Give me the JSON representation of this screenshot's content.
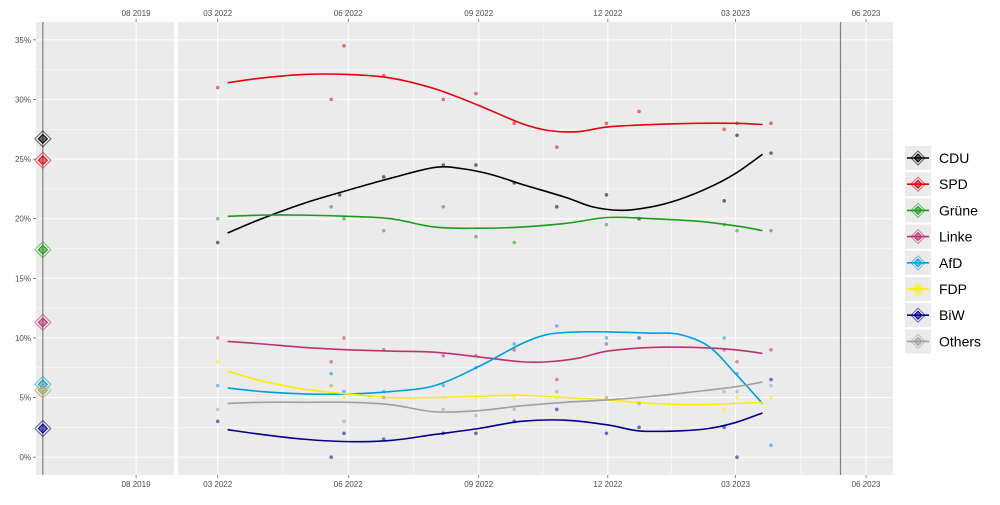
{
  "chart_data": {
    "type": "line",
    "y_ticks": [
      "0%",
      "5%",
      "10%",
      "15%",
      "20%",
      "25%",
      "30%",
      "35%"
    ],
    "y_tick_values": [
      0,
      5,
      10,
      15,
      20,
      25,
      30,
      35
    ],
    "ylim": [
      -1.5,
      36.5
    ],
    "grid": true,
    "legend_position": "right",
    "previous_election": {
      "date": "2018-11-01",
      "x_ticks": [
        {
          "date": "2019-08-01",
          "label": "08 2019"
        }
      ],
      "results": [
        {
          "party": "CDU",
          "value": 26.7
        },
        {
          "party": "SPD",
          "value": 24.9
        },
        {
          "party": "Grüne",
          "value": 17.4
        },
        {
          "party": "Linke",
          "value": 11.3
        },
        {
          "party": "AfD",
          "value": 6.1
        },
        {
          "party": "FDP",
          "value": 5.6
        },
        {
          "party": "BiW",
          "value": 2.4
        },
        {
          "party": "Others",
          "value": 5.6
        }
      ]
    },
    "x_ticks": [
      {
        "date": "2022-03-01",
        "label": "03 2022"
      },
      {
        "date": "2022-06-01",
        "label": "06 2022"
      },
      {
        "date": "2022-09-01",
        "label": "09 2022"
      },
      {
        "date": "2022-12-01",
        "label": "12 2022"
      },
      {
        "date": "2023-03-01",
        "label": "03 2023"
      },
      {
        "date": "2023-06-01",
        "label": "06 2023"
      }
    ],
    "x_range": [
      "2022-02-01",
      "2023-06-20"
    ],
    "election_date": "2023-05-14",
    "series": [
      {
        "name": "CDU",
        "color": "#000000",
        "trend": [
          [
            "2022-03-08",
            18.8
          ],
          [
            "2022-04-01",
            20.0
          ],
          [
            "2022-05-01",
            21.3
          ],
          [
            "2022-06-01",
            22.4
          ],
          [
            "2022-07-01",
            23.4
          ],
          [
            "2022-08-01",
            24.3
          ],
          [
            "2022-08-20",
            24.2
          ],
          [
            "2022-09-10",
            23.7
          ],
          [
            "2022-10-01",
            22.9
          ],
          [
            "2022-11-01",
            21.8
          ],
          [
            "2022-11-20",
            21.0
          ],
          [
            "2022-12-10",
            20.7
          ],
          [
            "2023-01-01",
            21.0
          ],
          [
            "2023-01-20",
            21.6
          ],
          [
            "2023-02-10",
            22.6
          ],
          [
            "2023-03-01",
            23.8
          ],
          [
            "2023-03-20",
            25.4
          ]
        ],
        "polls": [
          [
            "2022-03-01",
            18.0
          ],
          [
            "2022-05-26",
            22.0
          ],
          [
            "2022-06-26",
            23.5
          ],
          [
            "2022-08-07",
            24.5
          ],
          [
            "2022-08-30",
            24.5
          ],
          [
            "2022-09-26",
            23.0
          ],
          [
            "2022-10-26",
            21.0
          ],
          [
            "2022-11-30",
            22.0
          ],
          [
            "2022-12-23",
            20.0
          ],
          [
            "2023-02-21",
            21.5
          ],
          [
            "2023-03-02",
            27.0
          ],
          [
            "2023-03-26",
            25.5
          ]
        ]
      },
      {
        "name": "SPD",
        "color": "#E3000F",
        "trend": [
          [
            "2022-03-08",
            31.4
          ],
          [
            "2022-04-01",
            31.8
          ],
          [
            "2022-05-01",
            32.1
          ],
          [
            "2022-06-01",
            32.1
          ],
          [
            "2022-07-01",
            31.8
          ],
          [
            "2022-08-01",
            30.9
          ],
          [
            "2022-09-01",
            29.5
          ],
          [
            "2022-10-01",
            28.0
          ],
          [
            "2022-10-20",
            27.4
          ],
          [
            "2022-11-10",
            27.3
          ],
          [
            "2022-12-01",
            27.7
          ],
          [
            "2023-01-01",
            27.9
          ],
          [
            "2023-02-01",
            28.0
          ],
          [
            "2023-03-01",
            28.0
          ],
          [
            "2023-03-20",
            27.9
          ]
        ],
        "polls": [
          [
            "2022-03-01",
            31.0
          ],
          [
            "2022-05-20",
            30.0
          ],
          [
            "2022-05-29",
            34.5
          ],
          [
            "2022-06-26",
            32.0
          ],
          [
            "2022-08-07",
            30.0
          ],
          [
            "2022-08-30",
            30.5
          ],
          [
            "2022-09-26",
            28.0
          ],
          [
            "2022-10-26",
            26.0
          ],
          [
            "2022-11-30",
            28.0
          ],
          [
            "2022-12-23",
            29.0
          ],
          [
            "2023-02-21",
            27.5
          ],
          [
            "2023-03-02",
            28.0
          ],
          [
            "2023-03-26",
            28.0
          ]
        ]
      },
      {
        "name": "Grüne",
        "color": "#1A9E1A",
        "trend": [
          [
            "2022-03-08",
            20.2
          ],
          [
            "2022-04-01",
            20.3
          ],
          [
            "2022-05-01",
            20.3
          ],
          [
            "2022-06-01",
            20.2
          ],
          [
            "2022-07-01",
            20.0
          ],
          [
            "2022-08-01",
            19.3
          ],
          [
            "2022-09-01",
            19.2
          ],
          [
            "2022-10-01",
            19.3
          ],
          [
            "2022-11-01",
            19.6
          ],
          [
            "2022-12-01",
            20.1
          ],
          [
            "2023-01-01",
            20.0
          ],
          [
            "2023-02-01",
            19.8
          ],
          [
            "2023-03-01",
            19.4
          ],
          [
            "2023-03-20",
            19.0
          ]
        ],
        "polls": [
          [
            "2022-03-01",
            20.0
          ],
          [
            "2022-05-20",
            21.0
          ],
          [
            "2022-05-29",
            20.0
          ],
          [
            "2022-06-26",
            19.0
          ],
          [
            "2022-08-07",
            21.0
          ],
          [
            "2022-08-30",
            18.5
          ],
          [
            "2022-09-26",
            18.0
          ],
          [
            "2022-10-26",
            21.0
          ],
          [
            "2022-11-30",
            19.5
          ],
          [
            "2022-12-23",
            20.0
          ],
          [
            "2023-02-21",
            19.5
          ],
          [
            "2023-03-02",
            19.0
          ],
          [
            "2023-03-26",
            19.0
          ]
        ]
      },
      {
        "name": "Linke",
        "color": "#BE3075",
        "trend": [
          [
            "2022-03-08",
            9.7
          ],
          [
            "2022-04-01",
            9.5
          ],
          [
            "2022-05-01",
            9.2
          ],
          [
            "2022-06-01",
            9.0
          ],
          [
            "2022-07-01",
            8.9
          ],
          [
            "2022-08-01",
            8.8
          ],
          [
            "2022-09-01",
            8.4
          ],
          [
            "2022-10-01",
            8.0
          ],
          [
            "2022-10-20",
            8.0
          ],
          [
            "2022-11-10",
            8.3
          ],
          [
            "2022-12-01",
            8.9
          ],
          [
            "2023-01-01",
            9.2
          ],
          [
            "2023-02-01",
            9.2
          ],
          [
            "2023-03-01",
            9.0
          ],
          [
            "2023-03-20",
            8.7
          ]
        ],
        "polls": [
          [
            "2022-03-01",
            10.0
          ],
          [
            "2022-05-20",
            8.0
          ],
          [
            "2022-05-29",
            10.0
          ],
          [
            "2022-06-26",
            9.0
          ],
          [
            "2022-08-07",
            8.5
          ],
          [
            "2022-08-30",
            8.5
          ],
          [
            "2022-09-26",
            9.0
          ],
          [
            "2022-10-26",
            6.5
          ],
          [
            "2022-11-30",
            9.5
          ],
          [
            "2022-12-23",
            10.0
          ],
          [
            "2023-02-21",
            9.0
          ],
          [
            "2023-03-02",
            8.0
          ],
          [
            "2023-03-26",
            9.0
          ]
        ]
      },
      {
        "name": "AfD",
        "color": "#009EE0",
        "trend": [
          [
            "2022-03-08",
            5.8
          ],
          [
            "2022-04-01",
            5.5
          ],
          [
            "2022-05-01",
            5.3
          ],
          [
            "2022-06-01",
            5.3
          ],
          [
            "2022-07-01",
            5.5
          ],
          [
            "2022-08-01",
            6.0
          ],
          [
            "2022-09-01",
            7.6
          ],
          [
            "2022-10-01",
            9.5
          ],
          [
            "2022-10-20",
            10.3
          ],
          [
            "2022-11-10",
            10.5
          ],
          [
            "2022-12-01",
            10.5
          ],
          [
            "2023-01-01",
            10.4
          ],
          [
            "2023-01-20",
            10.3
          ],
          [
            "2023-02-10",
            9.3
          ],
          [
            "2023-03-01",
            7.0
          ],
          [
            "2023-03-20",
            4.5
          ]
        ],
        "polls": [
          [
            "2022-03-01",
            6.0
          ],
          [
            "2022-05-20",
            7.0
          ],
          [
            "2022-05-29",
            5.5
          ],
          [
            "2022-06-26",
            5.5
          ],
          [
            "2022-08-07",
            6.0
          ],
          [
            "2022-08-30",
            7.5
          ],
          [
            "2022-09-26",
            9.5
          ],
          [
            "2022-10-26",
            11.0
          ],
          [
            "2022-11-30",
            10.0
          ],
          [
            "2022-12-23",
            10.0
          ],
          [
            "2023-02-21",
            10.0
          ],
          [
            "2023-03-02",
            7.0
          ],
          [
            "2023-03-26",
            1.0
          ]
        ]
      },
      {
        "name": "FDP",
        "color": "#FFED00",
        "trend": [
          [
            "2022-03-08",
            7.2
          ],
          [
            "2022-04-01",
            6.4
          ],
          [
            "2022-05-01",
            5.7
          ],
          [
            "2022-06-01",
            5.3
          ],
          [
            "2022-07-01",
            5.0
          ],
          [
            "2022-08-01",
            5.0
          ],
          [
            "2022-09-01",
            5.1
          ],
          [
            "2022-10-01",
            5.2
          ],
          [
            "2022-11-01",
            5.0
          ],
          [
            "2022-12-01",
            4.8
          ],
          [
            "2023-01-01",
            4.5
          ],
          [
            "2023-02-01",
            4.4
          ],
          [
            "2023-03-01",
            4.5
          ],
          [
            "2023-03-20",
            4.6
          ]
        ],
        "polls": [
          [
            "2022-03-01",
            8.0
          ],
          [
            "2022-05-20",
            6.0
          ],
          [
            "2022-05-29",
            5.0
          ],
          [
            "2022-06-26",
            5.0
          ],
          [
            "2022-08-07",
            5.0
          ],
          [
            "2022-08-30",
            5.0
          ],
          [
            "2022-09-26",
            5.0
          ],
          [
            "2022-10-26",
            5.0
          ],
          [
            "2022-11-30",
            5.0
          ],
          [
            "2022-12-23",
            4.5
          ],
          [
            "2023-02-21",
            4.0
          ],
          [
            "2023-03-02",
            5.0
          ],
          [
            "2023-03-26",
            5.0
          ]
        ]
      },
      {
        "name": "BiW",
        "color": "#00008B",
        "trend": [
          [
            "2022-03-08",
            2.3
          ],
          [
            "2022-04-01",
            1.9
          ],
          [
            "2022-05-01",
            1.5
          ],
          [
            "2022-06-01",
            1.3
          ],
          [
            "2022-07-01",
            1.4
          ],
          [
            "2022-08-01",
            1.9
          ],
          [
            "2022-09-01",
            2.4
          ],
          [
            "2022-10-01",
            3.0
          ],
          [
            "2022-11-01",
            3.1
          ],
          [
            "2022-12-01",
            2.7
          ],
          [
            "2022-12-23",
            2.2
          ],
          [
            "2023-01-20",
            2.2
          ],
          [
            "2023-02-10",
            2.4
          ],
          [
            "2023-03-01",
            2.9
          ],
          [
            "2023-03-20",
            3.7
          ]
        ],
        "polls": [
          [
            "2022-03-01",
            3.0
          ],
          [
            "2022-05-20",
            0.0
          ],
          [
            "2022-05-29",
            2.0
          ],
          [
            "2022-06-26",
            1.5
          ],
          [
            "2022-08-07",
            2.0
          ],
          [
            "2022-08-30",
            2.0
          ],
          [
            "2022-09-26",
            3.0
          ],
          [
            "2022-10-26",
            4.0
          ],
          [
            "2022-11-30",
            2.0
          ],
          [
            "2022-12-23",
            2.5
          ],
          [
            "2023-02-21",
            2.5
          ],
          [
            "2023-03-02",
            0.0
          ],
          [
            "2023-03-26",
            6.5
          ]
        ]
      },
      {
        "name": "Others",
        "color": "#A0A0A0",
        "trend": [
          [
            "2022-03-08",
            4.5
          ],
          [
            "2022-04-01",
            4.6
          ],
          [
            "2022-05-01",
            4.6
          ],
          [
            "2022-06-01",
            4.6
          ],
          [
            "2022-07-01",
            4.4
          ],
          [
            "2022-08-01",
            3.8
          ],
          [
            "2022-09-01",
            3.9
          ],
          [
            "2022-10-01",
            4.3
          ],
          [
            "2022-11-01",
            4.6
          ],
          [
            "2022-12-01",
            4.8
          ],
          [
            "2023-01-01",
            5.1
          ],
          [
            "2023-02-01",
            5.5
          ],
          [
            "2023-03-01",
            5.9
          ],
          [
            "2023-03-20",
            6.3
          ]
        ],
        "polls": [
          [
            "2022-03-01",
            4.0
          ],
          [
            "2022-05-20",
            6.0
          ],
          [
            "2022-05-29",
            3.0
          ],
          [
            "2022-06-26",
            5.0
          ],
          [
            "2022-08-07",
            4.0
          ],
          [
            "2022-08-30",
            3.5
          ],
          [
            "2022-09-26",
            4.0
          ],
          [
            "2022-10-26",
            5.5
          ],
          [
            "2022-11-30",
            5.0
          ],
          [
            "2022-12-23",
            4.5
          ],
          [
            "2023-02-21",
            5.5
          ],
          [
            "2023-03-02",
            5.5
          ],
          [
            "2023-03-26",
            6.0
          ]
        ]
      }
    ]
  }
}
